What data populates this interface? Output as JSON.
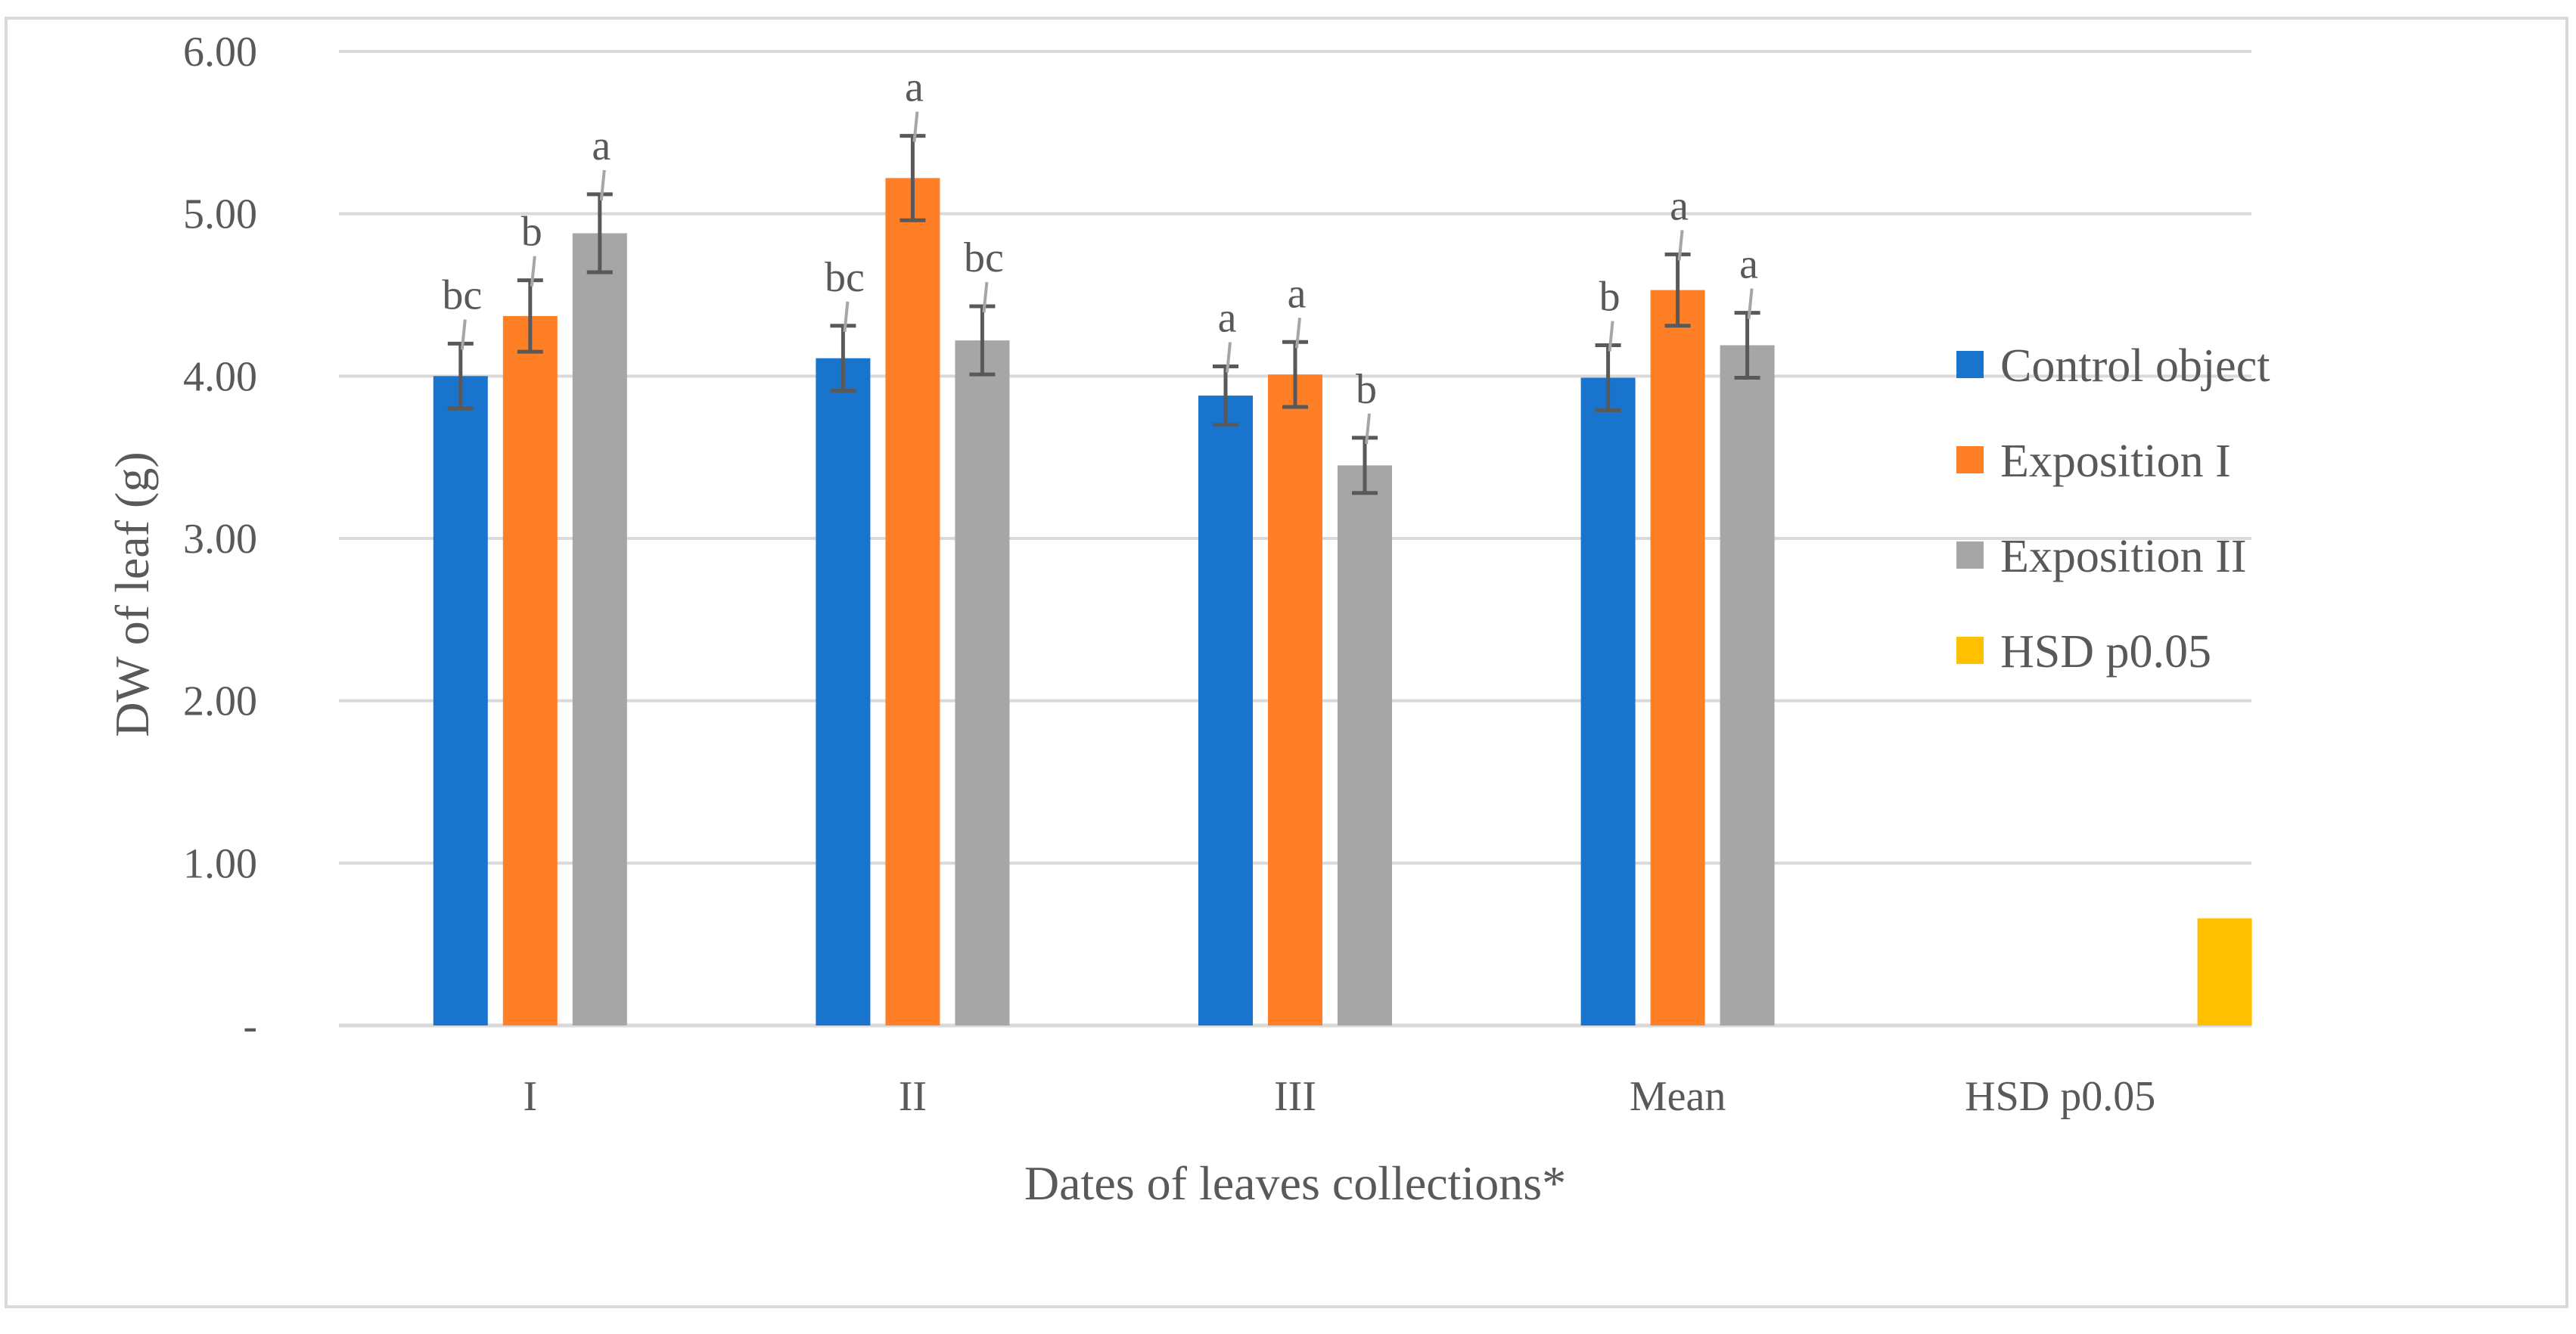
{
  "chart_data": {
    "type": "bar",
    "title": "",
    "xlabel": "Dates of leaves collections*",
    "ylabel": "DW of leaf (g)",
    "ylim": [
      0,
      6
    ],
    "grid": true,
    "legend_position": "right",
    "y_ticks": [
      "-",
      "1.00",
      "2.00",
      "3.00",
      "4.00",
      "5.00",
      "6.00"
    ],
    "categories": [
      "I",
      "II",
      "III",
      "Mean",
      "HSD p0.05"
    ],
    "series": [
      {
        "name": "Control object",
        "color": "#1874CD",
        "values": [
          4.0,
          4.11,
          3.88,
          3.99,
          null
        ],
        "errors": [
          0.2,
          0.2,
          0.18,
          0.2,
          null
        ],
        "labels": [
          "bc",
          "bc",
          "a",
          "b",
          ""
        ]
      },
      {
        "name": "Exposition I",
        "color": "#FF7F27",
        "values": [
          4.37,
          5.22,
          4.01,
          4.53,
          null
        ],
        "errors": [
          0.22,
          0.26,
          0.2,
          0.22,
          null
        ],
        "labels": [
          "b",
          "a",
          "a",
          "a",
          ""
        ]
      },
      {
        "name": "Exposition II",
        "color": "#A6A6A6",
        "values": [
          4.88,
          4.22,
          3.45,
          4.19,
          null
        ],
        "errors": [
          0.24,
          0.21,
          0.17,
          0.2,
          null
        ],
        "labels": [
          "a",
          "bc",
          "b",
          "a",
          ""
        ]
      },
      {
        "name": "HSD p0.05",
        "color": "#FFC000",
        "values": [
          null,
          null,
          null,
          null,
          0.66
        ],
        "errors": [
          null,
          null,
          null,
          null,
          null
        ],
        "labels": [
          "",
          "",
          "",
          "",
          ""
        ]
      }
    ]
  }
}
